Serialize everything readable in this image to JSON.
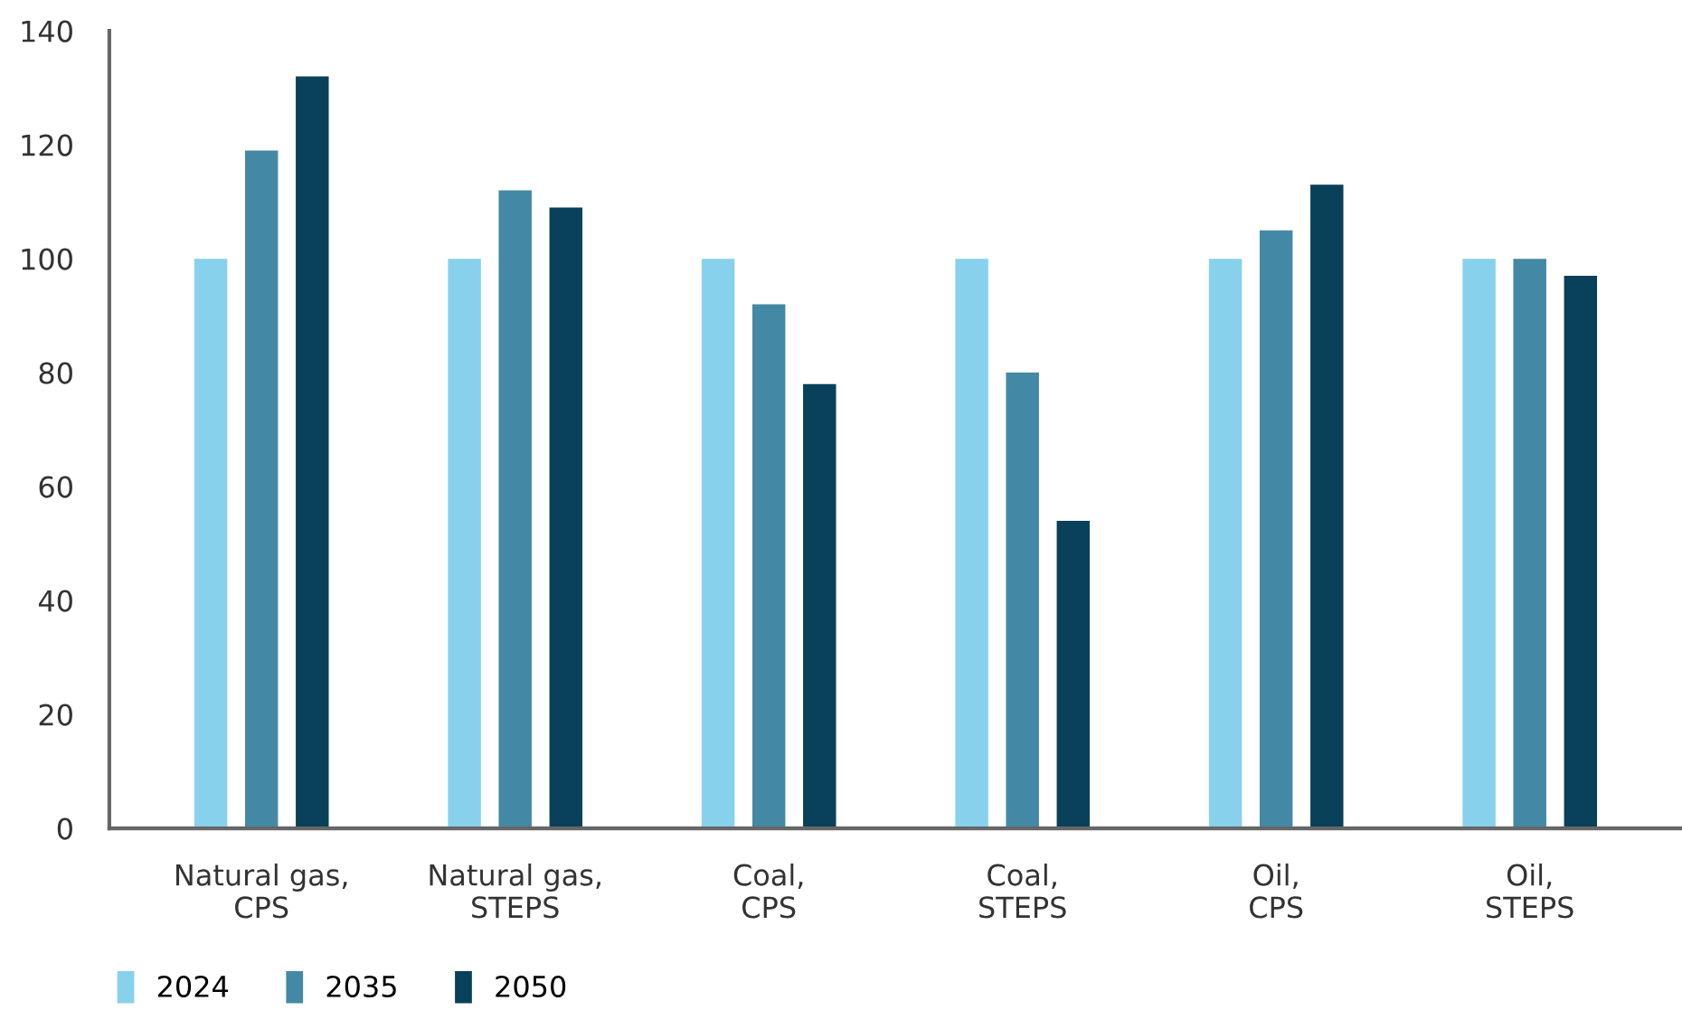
{
  "chart_data": {
    "type": "bar",
    "categories": [
      "Natural gas,\nCPS",
      "Natural gas,\nSTEPS",
      "Coal,\nCPS",
      "Coal,\nSTEPS",
      "Oil,\nCPS",
      "Oil,\nSTEPS"
    ],
    "series": [
      {
        "name": "2024",
        "color": "#87d1ed",
        "values": [
          100,
          100,
          100,
          100,
          100,
          100
        ]
      },
      {
        "name": "2035",
        "color": "#4389a6",
        "values": [
          119,
          112,
          92,
          80,
          105,
          100
        ]
      },
      {
        "name": "2050",
        "color": "#09405a",
        "values": [
          132,
          109,
          78,
          54,
          113,
          97
        ]
      }
    ],
    "ylim": [
      0,
      140
    ],
    "yticks": [
      0,
      20,
      40,
      60,
      80,
      100,
      120,
      140
    ],
    "grid": false,
    "legend": "bottom left"
  }
}
